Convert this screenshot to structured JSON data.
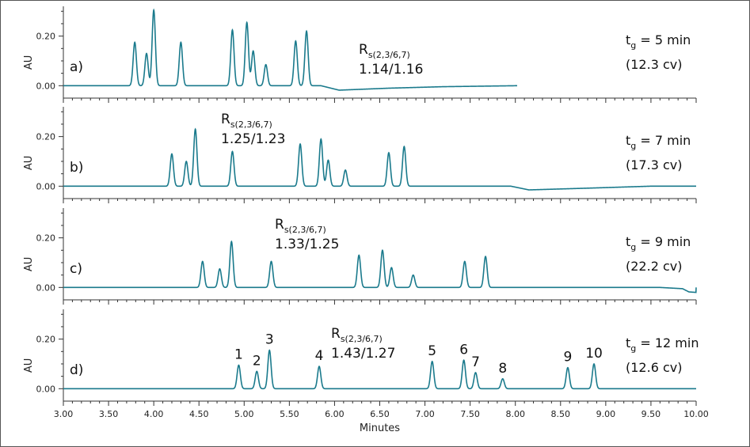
{
  "chart_data": {
    "type": "line",
    "xlabel": "Minutes",
    "ylabel": "AU",
    "xlim": [
      3.0,
      10.0
    ],
    "x_ticks": [
      "3.00",
      "3.50",
      "4.00",
      "4.50",
      "5.00",
      "5.50",
      "6.00",
      "6.50",
      "7.00",
      "7.50",
      "8.00",
      "8.50",
      "9.00",
      "9.50",
      "10.00"
    ],
    "y_ticks": [
      "0.00",
      "0.20"
    ],
    "line_color": "#1a7a8c",
    "panels": [
      {
        "label": "a)",
        "ylim": [
          -0.05,
          0.32
        ],
        "x_end": 8.02,
        "rs_symbol": "R",
        "rs_sub": "s(2,3/6,7)",
        "rs_value": "1.14/1.16",
        "tg_main": "t",
        "tg_sub": "g",
        "tg_rest": " = 5 min",
        "cv": "(12.3 cv)",
        "peaks": [
          {
            "x": 3.79,
            "h": 0.175
          },
          {
            "x": 3.92,
            "h": 0.13
          },
          {
            "x": 4.0,
            "h": 0.305
          },
          {
            "x": 4.3,
            "h": 0.175
          },
          {
            "x": 4.87,
            "h": 0.225
          },
          {
            "x": 5.03,
            "h": 0.255
          },
          {
            "x": 5.1,
            "h": 0.14
          },
          {
            "x": 5.24,
            "h": 0.085
          },
          {
            "x": 5.57,
            "h": 0.18
          },
          {
            "x": 5.69,
            "h": 0.22
          }
        ],
        "baseline": [
          [
            3.0,
            0.0
          ],
          [
            5.85,
            0.0
          ],
          [
            6.05,
            -0.018
          ],
          [
            6.6,
            -0.01
          ],
          [
            7.2,
            -0.004
          ],
          [
            8.02,
            0.0
          ]
        ]
      },
      {
        "label": "b)",
        "ylim": [
          -0.05,
          0.32
        ],
        "x_end": 10.0,
        "rs_symbol": "R",
        "rs_sub": "s(2,3/6,7)",
        "rs_value": "1.25/1.23",
        "tg_main": "t",
        "tg_sub": "g",
        "tg_rest": " = 7 min",
        "cv": "(17.3 cv)",
        "peaks": [
          {
            "x": 4.2,
            "h": 0.13
          },
          {
            "x": 4.36,
            "h": 0.1
          },
          {
            "x": 4.46,
            "h": 0.23
          },
          {
            "x": 4.87,
            "h": 0.14
          },
          {
            "x": 5.62,
            "h": 0.17
          },
          {
            "x": 5.85,
            "h": 0.19
          },
          {
            "x": 5.93,
            "h": 0.105
          },
          {
            "x": 6.12,
            "h": 0.065
          },
          {
            "x": 6.6,
            "h": 0.135
          },
          {
            "x": 6.77,
            "h": 0.16
          }
        ],
        "baseline": [
          [
            3.0,
            0.0
          ],
          [
            7.95,
            0.0
          ],
          [
            8.15,
            -0.015
          ],
          [
            8.8,
            -0.008
          ],
          [
            9.5,
            0.0
          ],
          [
            10.0,
            0.0
          ]
        ]
      },
      {
        "label": "c)",
        "ylim": [
          -0.05,
          0.32
        ],
        "x_end": 10.0,
        "rs_symbol": "R",
        "rs_sub": "s(2,3/6,7)",
        "rs_value": "1.33/1.25",
        "tg_main": "t",
        "tg_sub": "g",
        "tg_rest": " = 9 min",
        "cv": "(22.2 cv)",
        "peaks": [
          {
            "x": 4.54,
            "h": 0.105
          },
          {
            "x": 4.73,
            "h": 0.075
          },
          {
            "x": 4.86,
            "h": 0.185
          },
          {
            "x": 5.3,
            "h": 0.105
          },
          {
            "x": 6.27,
            "h": 0.13
          },
          {
            "x": 6.53,
            "h": 0.15
          },
          {
            "x": 6.63,
            "h": 0.08
          },
          {
            "x": 6.87,
            "h": 0.05
          },
          {
            "x": 7.44,
            "h": 0.105
          },
          {
            "x": 7.67,
            "h": 0.125
          }
        ],
        "baseline": [
          [
            3.0,
            0.0
          ],
          [
            9.6,
            0.0
          ],
          [
            9.85,
            -0.005
          ],
          [
            9.92,
            -0.018
          ],
          [
            10.0,
            -0.02
          ]
        ]
      },
      {
        "label": "d)",
        "ylim": [
          -0.05,
          0.32
        ],
        "x_end": 10.0,
        "rs_symbol": "R",
        "rs_sub": "s(2,3/6,7)",
        "rs_value": "1.43/1.27",
        "tg_main": "t",
        "tg_sub": "g",
        "tg_rest": " = 12 min",
        "cv": "(12.6 cv)",
        "peaks": [
          {
            "x": 4.94,
            "h": 0.095,
            "n": "1"
          },
          {
            "x": 5.14,
            "h": 0.07,
            "n": "2"
          },
          {
            "x": 5.28,
            "h": 0.155,
            "n": "3"
          },
          {
            "x": 5.83,
            "h": 0.09,
            "n": "4"
          },
          {
            "x": 7.08,
            "h": 0.11,
            "n": "5"
          },
          {
            "x": 7.43,
            "h": 0.115,
            "n": "6"
          },
          {
            "x": 7.56,
            "h": 0.065,
            "n": "7"
          },
          {
            "x": 7.86,
            "h": 0.04,
            "n": "8"
          },
          {
            "x": 8.58,
            "h": 0.085,
            "n": "9"
          },
          {
            "x": 8.87,
            "h": 0.1,
            "n": "10"
          }
        ],
        "baseline": [
          [
            3.0,
            0.0
          ],
          [
            10.0,
            0.0
          ]
        ]
      }
    ]
  }
}
